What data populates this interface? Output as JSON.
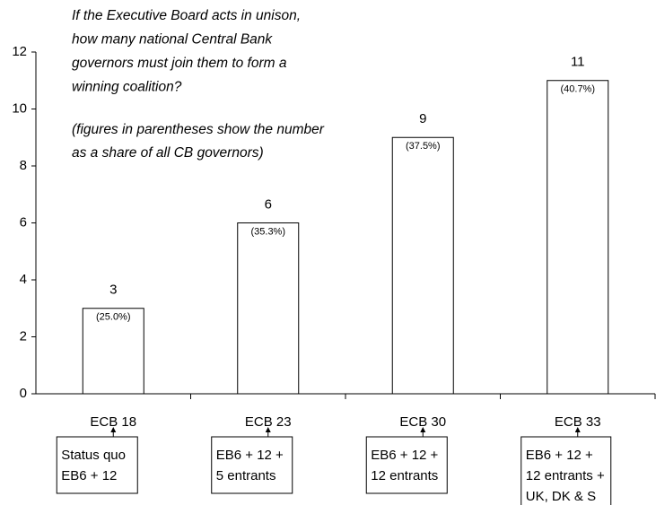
{
  "chart_data": {
    "type": "bar",
    "title": [
      "If the Executive Board acts in unison,",
      "how many national Central Bank",
      "governors must join them to form a",
      "winning coalition?"
    ],
    "subtitle": [
      "(figures in parentheses show the number",
      "as a share of  all CB governors)"
    ],
    "categories": [
      "ECB 18",
      "ECB 23",
      "ECB 30",
      "ECB 33"
    ],
    "values": [
      3,
      6,
      9,
      11
    ],
    "share_labels": [
      "(25.0%)",
      "(35.3%)",
      "(37.5%)",
      "(40.7%)"
    ],
    "descriptions": [
      [
        "Status quo",
        "EB6 + 12"
      ],
      [
        "EB6 + 12 +",
        "5 entrants"
      ],
      [
        "EB6 + 12 +",
        "12 entrants"
      ],
      [
        "EB6 + 12 +",
        "12 entrants +",
        "UK, DK & S"
      ]
    ],
    "color": "#ffffff",
    "ylim": [
      0,
      12
    ],
    "yticks": [
      0,
      2,
      4,
      6,
      8,
      10,
      12
    ],
    "grid": false
  }
}
